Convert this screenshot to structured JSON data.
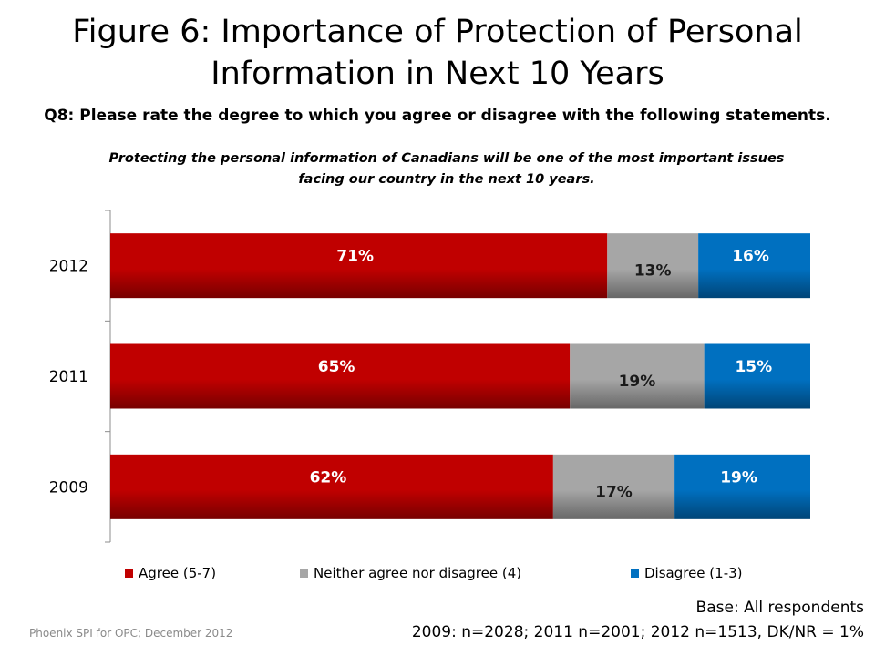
{
  "title_line1": "Figure 6: Importance of Protection of Personal",
  "title_line2": "Information in Next 10 Years",
  "question": "Q8: Please rate the degree to which you agree or disagree with the following statements.",
  "statement_line1": "Protecting the personal information of Canadians will be one of the most important issues",
  "statement_line2": "facing our country in the next 10 years.",
  "base_line1": "Base: All respondents",
  "base_line2": "2009: n=2028; 2011 n=2001; 2012 n=1513, DK/NR = 1%",
  "source": "Phoenix SPI for OPC; December 2012",
  "colors": {
    "agree": "#c00000",
    "neither": "#a6a6a6",
    "disagree": "#0070c0"
  },
  "chart_data": {
    "type": "bar",
    "orientation": "horizontal",
    "stacked": true,
    "percent_stacked": true,
    "categories": [
      "2012",
      "2011",
      "2009"
    ],
    "series": [
      {
        "name": "Agree (5-7)",
        "values": [
          71,
          65,
          62
        ],
        "labels": [
          "71%",
          "65%",
          "62%"
        ],
        "color": "#c00000"
      },
      {
        "name": "Neither agree nor disagree (4)",
        "values": [
          13,
          19,
          17
        ],
        "labels": [
          "13%",
          "19%",
          "17%"
        ],
        "color": "#a6a6a6"
      },
      {
        "name": "Disagree (1-3)",
        "values": [
          16,
          15,
          19
        ],
        "labels": [
          "16%",
          "15%",
          "19%"
        ],
        "color": "#0070c0"
      }
    ],
    "legend_position": "bottom",
    "grid": false
  }
}
